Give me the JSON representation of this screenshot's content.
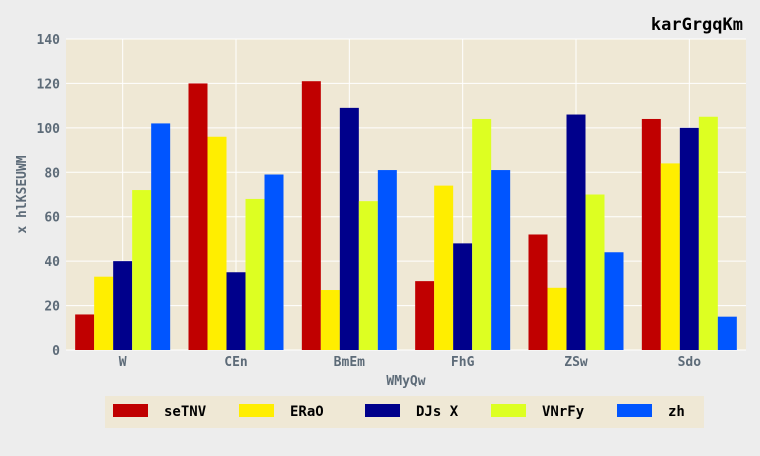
{
  "chart_data": {
    "type": "bar",
    "title": "karGrgqKm",
    "xlabel": "WMyQw",
    "ylabel": "x hlKSEUWM",
    "categories": [
      "W",
      "CEn",
      "BmEm",
      "FhG",
      "ZSw",
      "Sdo"
    ],
    "series": [
      {
        "name": "seTNV",
        "color": "#c00000",
        "values": [
          16,
          120,
          121,
          31,
          52,
          104
        ]
      },
      {
        "name": "ERaO",
        "color": "#ffee00",
        "values": [
          33,
          96,
          27,
          74,
          28,
          84
        ]
      },
      {
        "name": "DJs X",
        "color": "#00008b",
        "values": [
          40,
          35,
          109,
          48,
          106,
          100
        ]
      },
      {
        "name": "VNrFy",
        "color": "#ddff22",
        "values": [
          72,
          68,
          67,
          104,
          70,
          105
        ]
      },
      {
        "name": "zh",
        "color": "#0055ff",
        "values": [
          102,
          79,
          81,
          81,
          44,
          15
        ]
      }
    ],
    "ylim": [
      0,
      140
    ],
    "yticks": [
      0,
      20,
      40,
      60,
      80,
      100,
      120,
      140
    ],
    "grid": true,
    "legend_position": "bottom"
  }
}
